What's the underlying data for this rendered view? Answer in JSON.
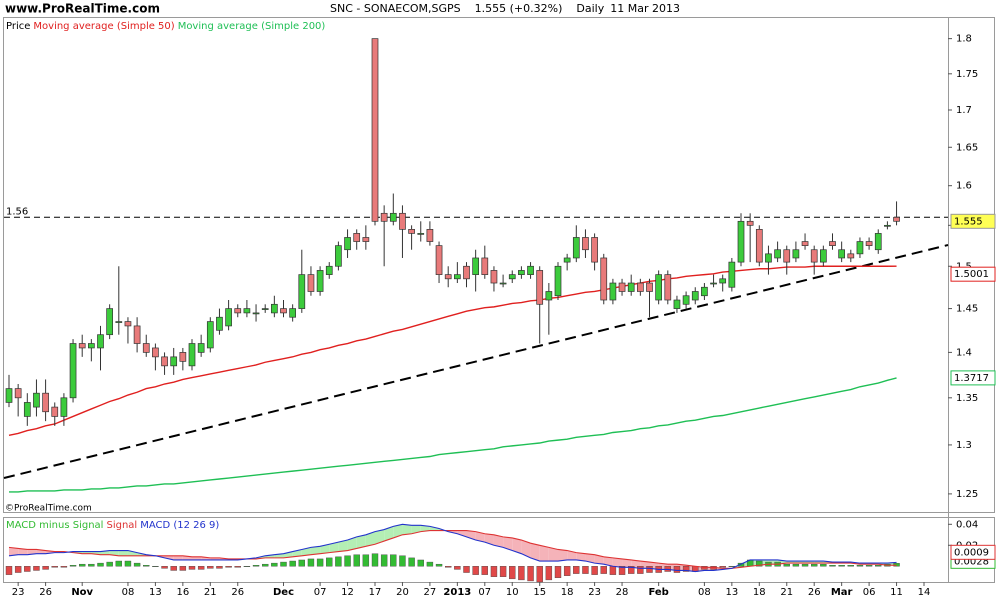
{
  "site": "www.ProRealTime.com",
  "copyright": "©ProRealTime.com",
  "chart_data": [
    {
      "type": "candlestick",
      "title": "SNC - SONAECOM,SGPS",
      "subtitle": "1.555 (+0.32%)",
      "period": "Daily",
      "date": "11 Mar 2013",
      "name": "Price",
      "up_color": "#3ccb3c",
      "down_color": "#e87a7a",
      "log_scale": true,
      "legend": "top-left",
      "last_value_label": true,
      "ylim": [
        1.232,
        1.83
      ],
      "yticks": [
        1.25,
        1.3,
        1.35,
        1.4,
        1.45,
        1.5,
        1.55,
        1.6,
        1.65,
        1.7,
        1.75,
        1.8
      ],
      "horizontal_line": 1.56,
      "categories": [
        null,
        "23",
        null,
        null,
        "26",
        null,
        null,
        null,
        "Nov",
        null,
        null,
        null,
        null,
        "08",
        null,
        null,
        "13",
        null,
        null,
        "16",
        null,
        null,
        "21",
        null,
        null,
        "26",
        null,
        null,
        null,
        null,
        "Dec",
        null,
        null,
        null,
        "07",
        null,
        null,
        "12",
        null,
        null,
        "17",
        null,
        null,
        "20",
        null,
        null,
        "27",
        null,
        null,
        "2013",
        null,
        null,
        "07",
        null,
        null,
        "10",
        null,
        null,
        "15",
        null,
        null,
        "18",
        null,
        null,
        "23",
        null,
        null,
        "28",
        null,
        null,
        null,
        "Feb",
        null,
        null,
        null,
        null,
        "08",
        null,
        null,
        "13",
        null,
        null,
        "18",
        null,
        null,
        "21",
        null,
        null,
        "26",
        null,
        null,
        "Mar",
        null,
        null,
        "06",
        null,
        null,
        "11",
        null,
        null,
        "14"
      ],
      "open": [
        1.345,
        1.36,
        1.33,
        1.34,
        1.355,
        1.34,
        1.33,
        1.35,
        1.41,
        1.405,
        1.405,
        1.42,
        1.435,
        1.435,
        1.43,
        1.41,
        1.405,
        1.395,
        1.385,
        1.4,
        1.385,
        1.4,
        1.405,
        1.425,
        1.43,
        1.45,
        1.445,
        1.445,
        1.45,
        1.445,
        1.45,
        1.44,
        1.45,
        1.49,
        1.47,
        1.49,
        1.5,
        1.52,
        1.54,
        1.535,
        1.8,
        1.565,
        1.555,
        1.565,
        1.545,
        1.54,
        1.545,
        1.525,
        1.49,
        1.485,
        1.5,
        1.49,
        1.51,
        1.495,
        1.48,
        1.485,
        1.49,
        1.49,
        1.495,
        1.46,
        1.465,
        1.505,
        1.51,
        1.535,
        1.535,
        1.51,
        1.46,
        1.48,
        1.47,
        1.48,
        1.48,
        1.46,
        1.49,
        1.45,
        1.455,
        1.46,
        1.465,
        1.48,
        1.48,
        1.475,
        1.505,
        1.555,
        1.545,
        1.505,
        1.51,
        1.52,
        1.51,
        1.53,
        1.52,
        1.505,
        1.53,
        1.51,
        1.515,
        1.515,
        1.53,
        1.52,
        1.55,
        1.56,
        null,
        null,
        null
      ],
      "high": [
        1.375,
        1.365,
        1.355,
        1.37,
        1.37,
        1.345,
        1.355,
        1.415,
        1.42,
        1.415,
        1.43,
        1.455,
        1.5,
        1.44,
        1.44,
        1.42,
        1.41,
        1.4,
        1.405,
        1.405,
        1.415,
        1.42,
        1.44,
        1.45,
        1.46,
        1.455,
        1.46,
        1.455,
        1.455,
        1.465,
        1.46,
        1.455,
        1.52,
        1.5,
        1.5,
        1.505,
        1.53,
        1.545,
        1.545,
        1.55,
        1.8,
        1.575,
        1.59,
        1.575,
        1.55,
        1.555,
        1.555,
        1.53,
        1.5,
        1.505,
        1.505,
        1.52,
        1.525,
        1.5,
        1.49,
        1.495,
        1.5,
        1.505,
        1.5,
        1.48,
        1.505,
        1.515,
        1.55,
        1.545,
        1.54,
        1.515,
        1.485,
        1.485,
        1.49,
        1.485,
        1.485,
        1.495,
        1.495,
        1.465,
        1.47,
        1.475,
        1.48,
        1.49,
        1.49,
        1.51,
        1.565,
        1.565,
        1.55,
        1.525,
        1.53,
        1.525,
        1.53,
        1.54,
        1.525,
        1.525,
        1.54,
        1.53,
        1.52,
        1.535,
        1.535,
        1.545,
        1.555,
        1.58,
        null,
        null,
        null
      ],
      "low": [
        1.34,
        1.33,
        1.32,
        1.33,
        1.325,
        1.32,
        1.32,
        1.345,
        1.395,
        1.39,
        1.38,
        1.415,
        1.42,
        1.41,
        1.4,
        1.395,
        1.38,
        1.375,
        1.375,
        1.38,
        1.38,
        1.395,
        1.4,
        1.42,
        1.425,
        1.44,
        1.44,
        1.435,
        1.445,
        1.44,
        1.44,
        1.435,
        1.445,
        1.465,
        1.465,
        1.485,
        1.495,
        1.51,
        1.52,
        1.52,
        1.55,
        1.5,
        1.55,
        1.51,
        1.52,
        1.53,
        1.525,
        1.48,
        1.475,
        1.48,
        1.475,
        1.47,
        1.485,
        1.47,
        1.475,
        1.48,
        1.485,
        1.485,
        1.41,
        1.42,
        1.46,
        1.495,
        1.505,
        1.51,
        1.495,
        1.455,
        1.455,
        1.465,
        1.465,
        1.465,
        1.44,
        1.455,
        1.455,
        1.445,
        1.45,
        1.455,
        1.46,
        1.475,
        1.47,
        1.47,
        1.5,
        1.505,
        1.5,
        1.49,
        1.505,
        1.49,
        1.505,
        1.52,
        1.49,
        1.5,
        1.52,
        1.505,
        1.505,
        1.51,
        1.52,
        1.515,
        1.545,
        1.55,
        null,
        null,
        null
      ],
      "close": [
        1.36,
        1.35,
        1.345,
        1.355,
        1.335,
        1.33,
        1.35,
        1.41,
        1.405,
        1.41,
        1.42,
        1.45,
        1.435,
        1.43,
        1.41,
        1.4,
        1.395,
        1.385,
        1.395,
        1.39,
        1.41,
        1.41,
        1.435,
        1.44,
        1.45,
        1.445,
        1.45,
        1.445,
        1.45,
        1.455,
        1.445,
        1.45,
        1.49,
        1.47,
        1.495,
        1.5,
        1.525,
        1.535,
        1.53,
        1.53,
        1.555,
        1.555,
        1.565,
        1.545,
        1.54,
        1.54,
        1.53,
        1.49,
        1.485,
        1.49,
        1.485,
        1.51,
        1.49,
        1.48,
        1.48,
        1.49,
        1.495,
        1.5,
        1.455,
        1.47,
        1.5,
        1.51,
        1.535,
        1.52,
        1.505,
        1.46,
        1.48,
        1.47,
        1.48,
        1.47,
        1.47,
        1.49,
        1.46,
        1.46,
        1.465,
        1.47,
        1.475,
        1.48,
        1.485,
        1.505,
        1.555,
        1.55,
        1.505,
        1.515,
        1.52,
        1.505,
        1.52,
        1.525,
        1.505,
        1.52,
        1.525,
        1.52,
        1.51,
        1.53,
        1.525,
        1.54,
        1.55,
        1.555,
        null,
        null,
        null
      ],
      "series": [
        {
          "name": "Moving average (Simple 50)",
          "color": "#e0201f",
          "last_value_label": true,
          "values": [
            1.31,
            1.312,
            1.315,
            1.317,
            1.32,
            1.322,
            1.326,
            1.33,
            1.334,
            1.338,
            1.342,
            1.346,
            1.349,
            1.353,
            1.356,
            1.36,
            1.362,
            1.365,
            1.367,
            1.37,
            1.372,
            1.374,
            1.376,
            1.378,
            1.38,
            1.382,
            1.384,
            1.386,
            1.389,
            1.391,
            1.393,
            1.395,
            1.398,
            1.4,
            1.403,
            1.405,
            1.408,
            1.41,
            1.413,
            1.415,
            1.418,
            1.421,
            1.424,
            1.426,
            1.429,
            1.432,
            1.435,
            1.438,
            1.441,
            1.444,
            1.447,
            1.449,
            1.451,
            1.452,
            1.454,
            1.456,
            1.457,
            1.459,
            1.46,
            1.462,
            1.463,
            1.465,
            1.467,
            1.469,
            1.47,
            1.472,
            1.474,
            1.476,
            1.478,
            1.48,
            1.482,
            1.483,
            1.485,
            1.486,
            1.488,
            1.489,
            1.49,
            1.491,
            1.493,
            1.494,
            1.495,
            1.496,
            1.497,
            1.497,
            1.498,
            1.499,
            1.499,
            1.499,
            1.5,
            1.5,
            1.5,
            1.5,
            1.5,
            1.5,
            1.5,
            1.5,
            1.5,
            1.5001,
            null,
            null,
            null
          ]
        },
        {
          "name": "Moving average (Simple 200)",
          "color": "#1fbf55",
          "last_value_label": true,
          "values": [
            1.252,
            1.252,
            1.253,
            1.253,
            1.253,
            1.253,
            1.254,
            1.254,
            1.254,
            1.255,
            1.255,
            1.256,
            1.256,
            1.257,
            1.258,
            1.258,
            1.259,
            1.26,
            1.26,
            1.261,
            1.262,
            1.263,
            1.264,
            1.265,
            1.266,
            1.267,
            1.268,
            1.269,
            1.27,
            1.271,
            1.272,
            1.273,
            1.274,
            1.275,
            1.276,
            1.277,
            1.278,
            1.279,
            1.28,
            1.281,
            1.282,
            1.283,
            1.284,
            1.285,
            1.286,
            1.287,
            1.288,
            1.29,
            1.291,
            1.292,
            1.293,
            1.294,
            1.295,
            1.296,
            1.298,
            1.299,
            1.3,
            1.301,
            1.302,
            1.304,
            1.305,
            1.306,
            1.308,
            1.309,
            1.31,
            1.311,
            1.313,
            1.314,
            1.315,
            1.317,
            1.318,
            1.32,
            1.321,
            1.323,
            1.325,
            1.326,
            1.328,
            1.33,
            1.331,
            1.333,
            1.335,
            1.337,
            1.339,
            1.341,
            1.343,
            1.345,
            1.347,
            1.349,
            1.351,
            1.353,
            1.355,
            1.357,
            1.359,
            1.362,
            1.364,
            1.366,
            1.369,
            1.3717,
            null,
            null,
            null
          ]
        }
      ]
    },
    {
      "type": "macd",
      "legend": "top-left",
      "ylim": [
        -0.015,
        0.046
      ],
      "yticks": [
        0.02,
        0.04
      ],
      "fill_up_color": "#b4eeb4",
      "fill_down_color": "#f5b3b9",
      "series": [
        {
          "name": "MACD minus Signal",
          "color": "#33bb33",
          "negative_color": "#e04848",
          "style": "histogram",
          "last_value_label": true,
          "values": [
            -0.008,
            -0.006,
            -0.005,
            -0.004,
            -0.003,
            -0.001,
            -0.001,
            0.001,
            0.002,
            0.002,
            0.003,
            0.004,
            0.005,
            0.005,
            0.003,
            0.001,
            0.0,
            -0.002,
            -0.004,
            -0.004,
            -0.003,
            -0.003,
            -0.002,
            -0.002,
            -0.001,
            -0.001,
            0.0,
            0.001,
            0.002,
            0.003,
            0.004,
            0.005,
            0.006,
            0.007,
            0.007,
            0.008,
            0.009,
            0.01,
            0.011,
            0.011,
            0.012,
            0.011,
            0.011,
            0.01,
            0.008,
            0.006,
            0.004,
            0.002,
            -0.001,
            -0.003,
            -0.006,
            -0.008,
            -0.008,
            -0.01,
            -0.01,
            -0.012,
            -0.013,
            -0.014,
            -0.015,
            -0.013,
            -0.011,
            -0.009,
            -0.007,
            -0.007,
            -0.008,
            -0.007,
            -0.008,
            -0.008,
            -0.007,
            -0.007,
            -0.006,
            -0.006,
            -0.005,
            -0.006,
            -0.005,
            -0.005,
            -0.003,
            -0.003,
            -0.001,
            0.0,
            0.003,
            0.006,
            0.005,
            0.004,
            0.004,
            0.002,
            0.002,
            0.002,
            0.002,
            0.002,
            0.001,
            0.001,
            0.001,
            0.001,
            0.001,
            0.001,
            0.002,
            0.0028,
            null,
            null,
            null
          ]
        },
        {
          "name": "Signal",
          "color": "#dd3333",
          "style": "line",
          "last_value_label": true,
          "values": [
            0.018,
            0.017,
            0.016,
            0.016,
            0.015,
            0.014,
            0.014,
            0.013,
            0.012,
            0.012,
            0.011,
            0.011,
            0.01,
            0.01,
            0.01,
            0.01,
            0.01,
            0.01,
            0.01,
            0.01,
            0.009,
            0.009,
            0.008,
            0.008,
            0.007,
            0.007,
            0.007,
            0.007,
            0.008,
            0.008,
            0.008,
            0.009,
            0.01,
            0.011,
            0.012,
            0.013,
            0.014,
            0.015,
            0.017,
            0.019,
            0.021,
            0.024,
            0.027,
            0.03,
            0.031,
            0.033,
            0.034,
            0.034,
            0.034,
            0.034,
            0.034,
            0.033,
            0.031,
            0.03,
            0.028,
            0.027,
            0.025,
            0.022,
            0.02,
            0.018,
            0.016,
            0.015,
            0.013,
            0.012,
            0.011,
            0.009,
            0.008,
            0.007,
            0.006,
            0.005,
            0.004,
            0.003,
            0.002,
            0.002,
            0.001,
            0.0,
            -0.001,
            -0.001,
            -0.002,
            -0.002,
            -0.001,
            0.0,
            0.001,
            0.002,
            0.002,
            0.003,
            0.003,
            0.003,
            0.003,
            0.003,
            0.003,
            0.003,
            0.003,
            0.002,
            0.002,
            0.002,
            0.001,
            0.0009,
            null,
            null,
            null
          ]
        },
        {
          "name": "MACD (12 26 9)",
          "color": "#2233cc",
          "style": "line",
          "values": [
            0.01,
            0.011,
            0.011,
            0.012,
            0.012,
            0.013,
            0.013,
            0.014,
            0.014,
            0.014,
            0.014,
            0.015,
            0.015,
            0.015,
            0.013,
            0.011,
            0.01,
            0.008,
            0.006,
            0.006,
            0.006,
            0.006,
            0.006,
            0.006,
            0.006,
            0.006,
            0.007,
            0.008,
            0.01,
            0.011,
            0.012,
            0.014,
            0.016,
            0.018,
            0.019,
            0.021,
            0.023,
            0.025,
            0.028,
            0.03,
            0.033,
            0.035,
            0.038,
            0.04,
            0.039,
            0.039,
            0.038,
            0.036,
            0.033,
            0.031,
            0.028,
            0.025,
            0.023,
            0.02,
            0.018,
            0.015,
            0.012,
            0.008,
            0.005,
            0.005,
            0.005,
            0.006,
            0.006,
            0.005,
            0.003,
            0.002,
            0.0,
            -0.001,
            -0.001,
            -0.002,
            -0.002,
            -0.003,
            -0.003,
            -0.004,
            -0.004,
            -0.005,
            -0.004,
            -0.004,
            -0.003,
            -0.002,
            0.002,
            0.006,
            0.006,
            0.006,
            0.006,
            0.005,
            0.005,
            0.005,
            0.005,
            0.005,
            0.004,
            0.004,
            0.004,
            0.003,
            0.003,
            0.003,
            0.003,
            0.0037,
            null,
            null,
            null
          ]
        }
      ]
    }
  ]
}
